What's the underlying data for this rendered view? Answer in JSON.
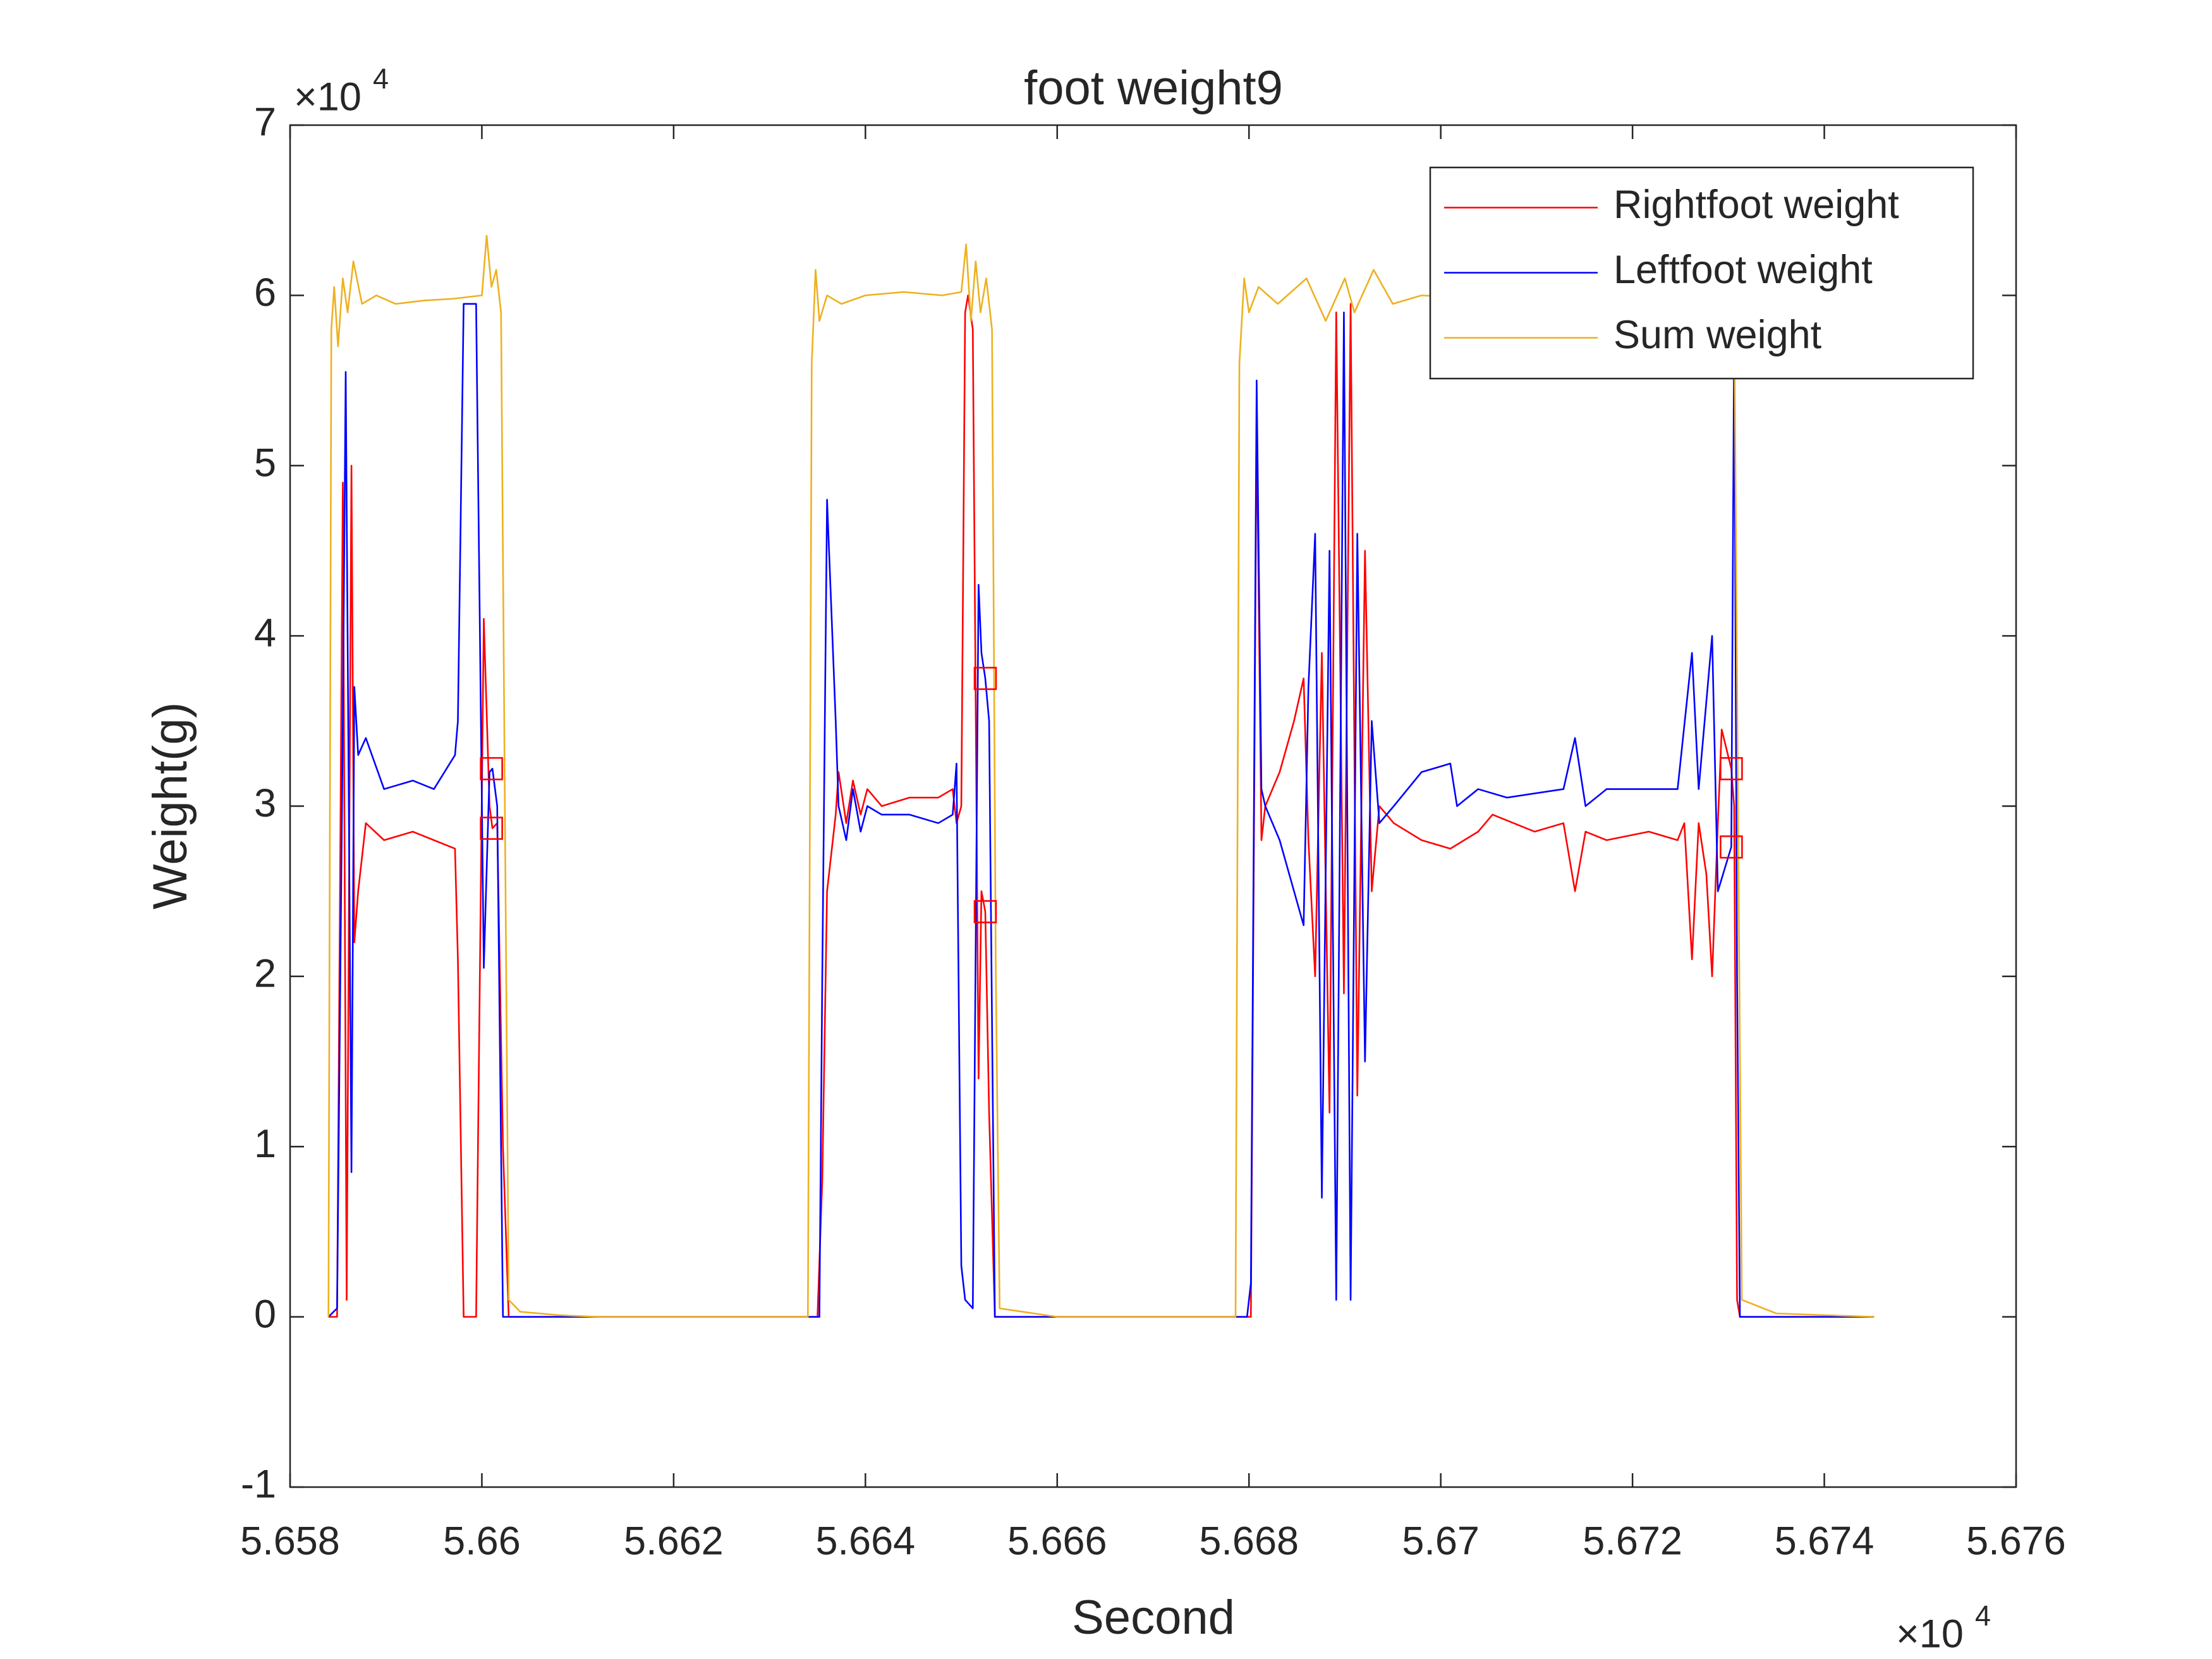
{
  "chart_data": {
    "type": "line",
    "title": "foot weight9",
    "xlabel": "Second",
    "ylabel": "Weight(g)",
    "x_exponent": {
      "base": "×10",
      "power": "4"
    },
    "y_exponent": {
      "base": "×10",
      "power": "4"
    },
    "xlim": [
      5.658,
      5.676
    ],
    "xticks": [
      5.658,
      5.66,
      5.662,
      5.664,
      5.666,
      5.668,
      5.67,
      5.672,
      5.674,
      5.676
    ],
    "ylim": [
      -1,
      7
    ],
    "yticks": [
      -1,
      0,
      1,
      2,
      3,
      4,
      5,
      6,
      7
    ],
    "grid": false,
    "legend": "northeast",
    "series": [
      {
        "name": "Rightfoot weight",
        "color": "#ff0000",
        "x": [
          5.6584,
          5.65849,
          5.65855,
          5.65859,
          5.65864,
          5.65867,
          5.65871,
          5.65879,
          5.65898,
          5.65928,
          5.6595,
          5.65972,
          5.65975,
          5.65981,
          5.65994,
          5.66002,
          5.66008,
          5.66011,
          5.66016,
          5.66022,
          5.66028,
          5.6635,
          5.66355,
          5.6636,
          5.66369,
          5.66372,
          5.6638,
          5.66387,
          5.66395,
          5.66402,
          5.66417,
          5.66446,
          5.66476,
          5.66491,
          5.66495,
          5.665,
          5.66504,
          5.66507,
          5.66512,
          5.66518,
          5.66521,
          5.66525,
          5.66529,
          5.66535,
          5.66802,
          5.66808,
          5.66813,
          5.66817,
          5.66832,
          5.66847,
          5.66857,
          5.66862,
          5.66869,
          5.66876,
          5.66884,
          5.66891,
          5.66899,
          5.66906,
          5.66913,
          5.66921,
          5.66928,
          5.66936,
          5.66951,
          5.6698,
          5.6701,
          5.67039,
          5.67054,
          5.67098,
          5.67128,
          5.6714,
          5.67151,
          5.67173,
          5.67217,
          5.67247,
          5.67254,
          5.67262,
          5.67269,
          5.67277,
          5.67283,
          5.67289,
          5.67293,
          5.67303,
          5.67306,
          5.67309,
          5.67312,
          5.67452
        ],
        "values": [
          0,
          0,
          4.9,
          0.1,
          5.0,
          2.2,
          2.5,
          2.9,
          2.8,
          2.85,
          2.8,
          2.75,
          2.1,
          0,
          0,
          4.1,
          3.0,
          2.87,
          2.9,
          1.0,
          0,
          0,
          0.8,
          2.5,
          2.95,
          3.2,
          2.9,
          3.15,
          2.95,
          3.1,
          3.0,
          3.05,
          3.05,
          3.1,
          2.9,
          3.0,
          5.9,
          6.0,
          5.8,
          1.4,
          2.5,
          2.38,
          1.2,
          0,
          0,
          5.3,
          2.8,
          3.0,
          3.2,
          3.5,
          3.75,
          2.8,
          2.0,
          3.9,
          1.2,
          5.9,
          1.9,
          5.95,
          1.3,
          4.5,
          2.5,
          3.0,
          2.9,
          2.8,
          2.75,
          2.85,
          2.95,
          2.85,
          2.9,
          2.5,
          2.85,
          2.8,
          2.85,
          2.8,
          2.9,
          2.1,
          2.9,
          2.6,
          2.0,
          2.9,
          3.45,
          3.22,
          3.0,
          0.1,
          0,
          0
        ]
      },
      {
        "name": "Leftfoot weight",
        "color": "#0000ff",
        "x": [
          5.6584,
          5.65849,
          5.65855,
          5.65858,
          5.65864,
          5.65867,
          5.65871,
          5.65879,
          5.65898,
          5.65928,
          5.6595,
          5.65972,
          5.65975,
          5.65981,
          5.65994,
          5.66002,
          5.66008,
          5.66011,
          5.66016,
          5.66022,
          5.66352,
          5.66355,
          5.6636,
          5.66369,
          5.66372,
          5.6638,
          5.66387,
          5.66395,
          5.66402,
          5.66417,
          5.66446,
          5.66476,
          5.66491,
          5.66495,
          5.665,
          5.66504,
          5.66512,
          5.66518,
          5.66521,
          5.66525,
          5.66529,
          5.66535,
          5.66798,
          5.66802,
          5.66808,
          5.66813,
          5.66817,
          5.66832,
          5.66847,
          5.66857,
          5.66862,
          5.66869,
          5.66876,
          5.66884,
          5.66891,
          5.66899,
          5.66906,
          5.66913,
          5.66921,
          5.66928,
          5.66936,
          5.66951,
          5.6698,
          5.6701,
          5.67017,
          5.67039,
          5.67069,
          5.67128,
          5.6714,
          5.67151,
          5.67173,
          5.67247,
          5.67262,
          5.67269,
          5.67283,
          5.67289,
          5.67303,
          5.67306,
          5.67309,
          5.67312,
          5.67452
        ],
        "values": [
          0,
          0.05,
          3.5,
          5.55,
          0.85,
          3.7,
          3.3,
          3.4,
          3.1,
          3.15,
          3.1,
          3.3,
          3.5,
          5.95,
          5.95,
          2.05,
          3.2,
          3.22,
          3.0,
          0,
          0,
          2.0,
          4.8,
          3.5,
          3.0,
          2.8,
          3.1,
          2.85,
          3.0,
          2.95,
          2.95,
          2.9,
          2.95,
          3.25,
          0.3,
          0.1,
          0.05,
          4.3,
          3.9,
          3.75,
          3.5,
          0,
          0,
          0.2,
          5.5,
          3.1,
          3.0,
          2.8,
          2.5,
          2.3,
          3.7,
          4.6,
          0.7,
          4.5,
          0.1,
          5.9,
          0.1,
          4.6,
          1.5,
          3.5,
          2.9,
          3.0,
          3.2,
          3.25,
          3.0,
          3.1,
          3.05,
          3.1,
          3.4,
          3.0,
          3.1,
          3.1,
          3.9,
          3.1,
          4.0,
          2.5,
          2.76,
          5.8,
          2.0,
          0,
          0
        ]
      },
      {
        "name": "Sum weight",
        "color": "#edb120",
        "x": [
          5.6584,
          5.65843,
          5.65846,
          5.6585,
          5.65855,
          5.6586,
          5.65866,
          5.65875,
          5.6589,
          5.6591,
          5.6594,
          5.6597,
          5.66,
          5.66005,
          5.6601,
          5.66015,
          5.6602,
          5.66024,
          5.66028,
          5.6604,
          5.6608,
          5.6612,
          5.6634,
          5.66344,
          5.66348,
          5.66352,
          5.6636,
          5.66375,
          5.664,
          5.6644,
          5.6648,
          5.665,
          5.66505,
          5.6651,
          5.66515,
          5.6652,
          5.66526,
          5.66532,
          5.66536,
          5.6654,
          5.666,
          5.66786,
          5.6679,
          5.66795,
          5.668,
          5.6681,
          5.6683,
          5.6686,
          5.6688,
          5.669,
          5.6691,
          5.6693,
          5.6695,
          5.6698,
          5.6705,
          5.671,
          5.672,
          5.673,
          5.67306,
          5.6731,
          5.67314,
          5.6735,
          5.67452
        ],
        "values": [
          0,
          5.8,
          6.05,
          5.7,
          6.1,
          5.9,
          6.2,
          5.95,
          6.0,
          5.95,
          5.97,
          5.98,
          6.0,
          6.35,
          6.05,
          6.15,
          5.9,
          3.0,
          0.1,
          0.03,
          0.01,
          0,
          0,
          5.6,
          6.15,
          5.85,
          6.0,
          5.95,
          6.0,
          6.02,
          6.0,
          6.02,
          6.3,
          5.85,
          6.2,
          5.9,
          6.1,
          5.8,
          2.0,
          0.05,
          0,
          0,
          5.6,
          6.1,
          5.9,
          6.05,
          5.95,
          6.1,
          5.85,
          6.1,
          5.9,
          6.15,
          5.95,
          6.0,
          5.98,
          6.0,
          6.0,
          6.0,
          5.95,
          3.0,
          0.1,
          0.02,
          0
        ]
      }
    ],
    "markers": {
      "color": "#ff0000",
      "x": [
        5.6601,
        5.6601,
        5.66525,
        5.66525,
        5.67303,
        5.67303
      ],
      "values": [
        3.22,
        2.87,
        3.75,
        2.38,
        3.22,
        2.76
      ]
    }
  }
}
